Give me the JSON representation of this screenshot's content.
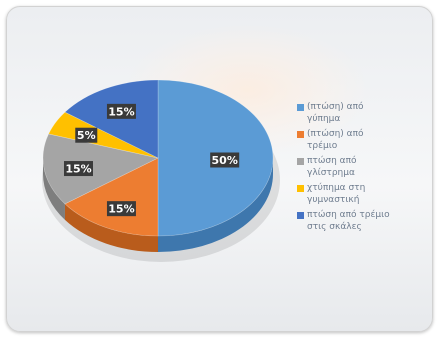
{
  "chart_data": {
    "type": "pie",
    "title": "",
    "three_d": true,
    "legend_position": "right",
    "slices": [
      {
        "label": "(πτώση) από\nγύπημα",
        "value": 50,
        "data_label": "50%",
        "color": "#5b9bd5",
        "side_color": "#3e77ad"
      },
      {
        "label": "(πτώση) από\nτρέμιο",
        "value": 15,
        "data_label": "15%",
        "color": "#ed7d31",
        "side_color": "#b95c1c"
      },
      {
        "label": "πτώση από\nγλίστρημα",
        "value": 15,
        "data_label": "15%",
        "color": "#a5a5a5",
        "side_color": "#7e7e7e"
      },
      {
        "label": "χτύπημα στη\nγυμναστική",
        "value": 5,
        "data_label": "5%",
        "color": "#ffc000",
        "side_color": "#c99500"
      },
      {
        "label": "πτώση από τρέμιο\nστις σκάλες",
        "value": 15,
        "data_label": "15%",
        "color": "#4472c4",
        "side_color": "#2f5496"
      }
    ]
  }
}
